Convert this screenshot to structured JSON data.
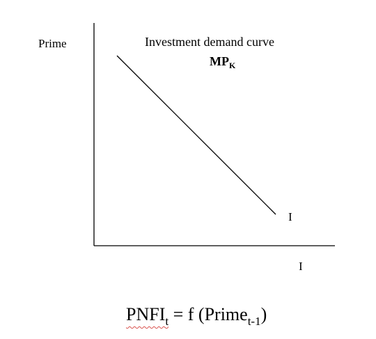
{
  "diagram": {
    "y_axis_label": "Prime",
    "x_axis_label": "I",
    "title": "Investment demand curve",
    "subtitle_main": "MP",
    "subtitle_sub": "K",
    "curve_label": "I"
  },
  "equation": {
    "lhs_main": "PNFI",
    "lhs_sub": "t",
    "middle": " = f (Prime",
    "rhs_sub": "t-1",
    "end": ")"
  },
  "colors": {
    "line": "#000000",
    "spellcheck_underline": "#d9534f"
  }
}
